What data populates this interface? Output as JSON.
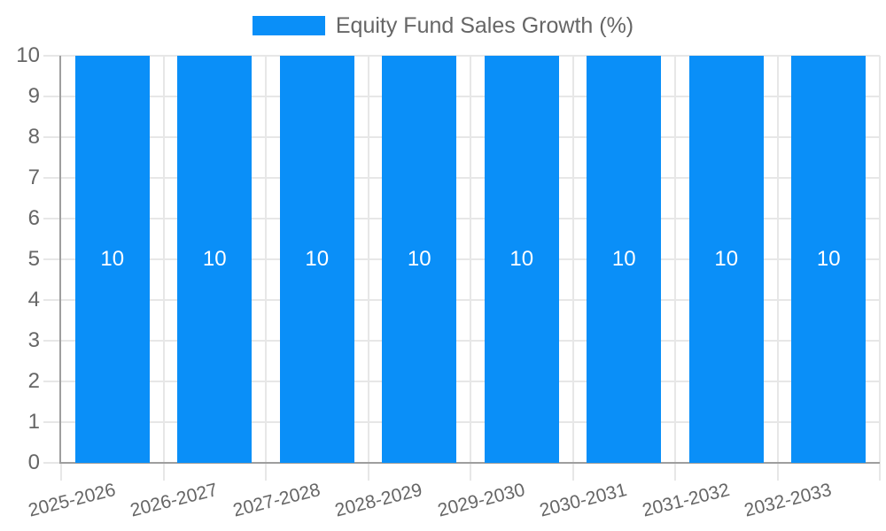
{
  "chart_data": {
    "type": "bar",
    "title": "Equity Fund Sales Growth (%)",
    "legend": {
      "position": "top",
      "entries": [
        "Equity Fund Sales Growth (%)"
      ]
    },
    "categories": [
      "2025-2026",
      "2026-2027",
      "2027-2028",
      "2028-2029",
      "2029-2030",
      "2030-2031",
      "2031-2032",
      "2032-2033"
    ],
    "series": [
      {
        "name": "Equity Fund Sales Growth (%)",
        "values": [
          10,
          10,
          10,
          10,
          10,
          10,
          10,
          10
        ]
      }
    ],
    "data_labels": [
      "10",
      "10",
      "10",
      "10",
      "10",
      "10",
      "10",
      "10"
    ],
    "xlabel": "",
    "ylabel": "",
    "ylim": [
      0,
      10
    ],
    "ytick_step": 1,
    "yticks": [
      0,
      1,
      2,
      3,
      4,
      5,
      6,
      7,
      8,
      9,
      10
    ],
    "grid": true,
    "colors": {
      "bar": "#0A8FF8",
      "gridline": "#E7E7E7",
      "axis_line": "#9E9E9E",
      "tick_text": "#666666",
      "bar_label_text": "#FFFFFF",
      "background": "#FFFFFF"
    }
  }
}
